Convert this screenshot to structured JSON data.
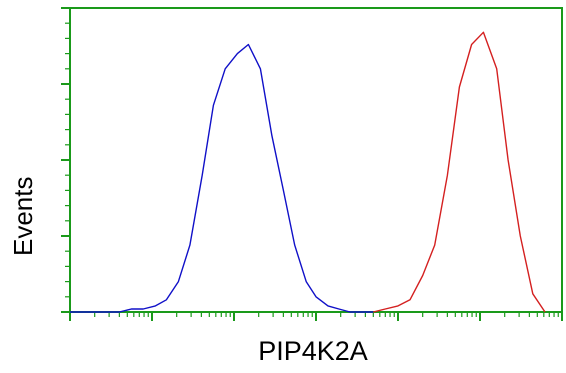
{
  "chart_data": {
    "type": "line",
    "xlabel": "PIP4K2A",
    "ylabel": "Events",
    "xscale": "log",
    "xlim": [
      1,
      1000000
    ],
    "ylim": [
      0,
      100
    ],
    "grid": false,
    "axis_color": "#1a9a1a",
    "series": [
      {
        "color": "#1010c8",
        "x": [
          1.0,
          1.5,
          2.1,
          2.9,
          4.0,
          5.6,
          7.8,
          11,
          15,
          21,
          29,
          41,
          56,
          78,
          110,
          150,
          210,
          290,
          400,
          550,
          760,
          1000,
          1400,
          1900,
          2600,
          3600,
          5000
        ],
        "y": [
          0,
          0,
          0,
          0,
          0,
          1,
          1,
          2,
          4,
          10,
          22,
          45,
          68,
          80,
          85,
          88,
          80,
          58,
          40,
          22,
          10,
          5,
          2,
          1,
          0,
          0,
          0
        ]
      },
      {
        "color": "#d42020",
        "x": [
          5000,
          7000,
          10000,
          14000,
          20000,
          28000,
          40000,
          56000,
          79000,
          110000,
          160000,
          220000,
          310000,
          440000,
          620000
        ],
        "y": [
          0,
          1,
          2,
          4,
          12,
          22,
          45,
          74,
          88,
          92,
          80,
          50,
          25,
          6,
          0
        ]
      }
    ]
  }
}
